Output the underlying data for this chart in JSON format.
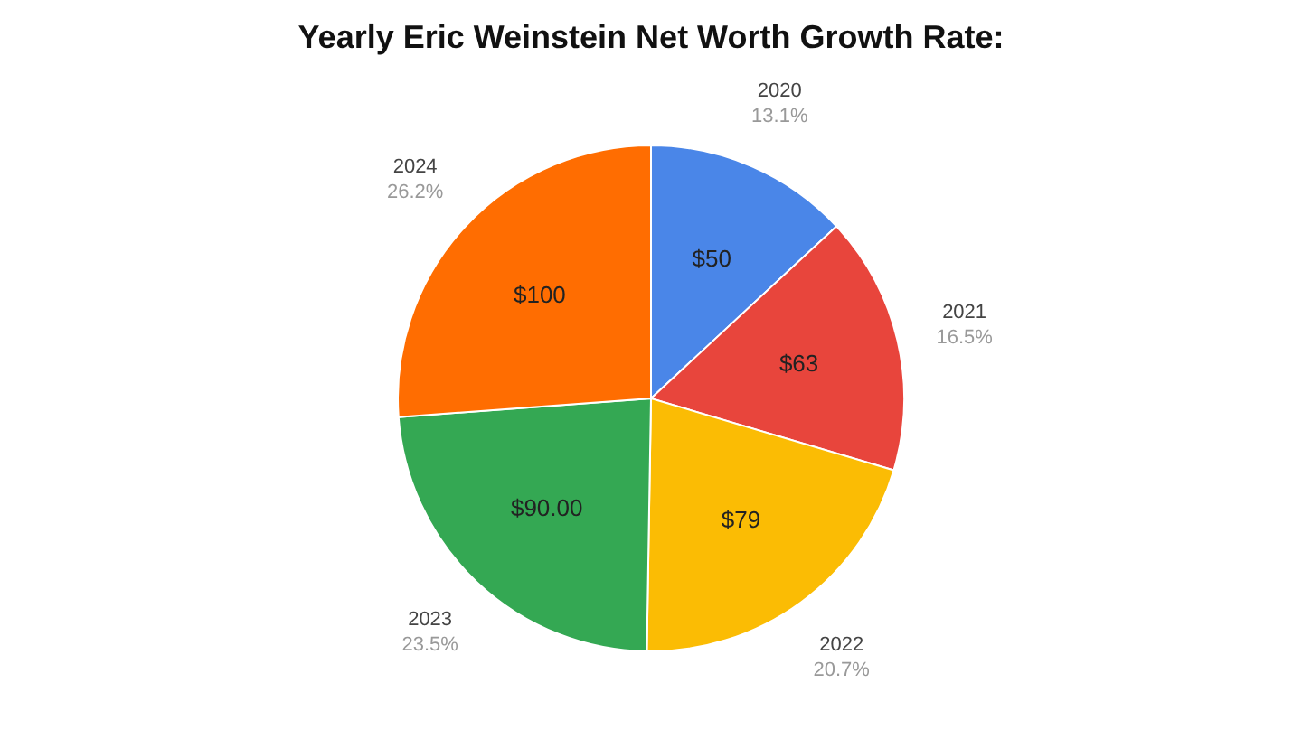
{
  "chart_data": {
    "type": "pie",
    "title": "Yearly Eric Weinstein Net Worth Growth Rate:",
    "categories": [
      "2020",
      "2021",
      "2022",
      "2023",
      "2024"
    ],
    "values": [
      50,
      63,
      79,
      90,
      100
    ],
    "value_labels": [
      "$50",
      "$63",
      "$79",
      "$90.00",
      "$100"
    ],
    "colors": [
      "#4a86e8",
      "#e8453c",
      "#fbbc04",
      "#34a853",
      "#ff6d01"
    ],
    "annotations": [
      "13.1%",
      "16.5%",
      "20.7%",
      "23.5%",
      "26.2%"
    ],
    "legend": false
  }
}
